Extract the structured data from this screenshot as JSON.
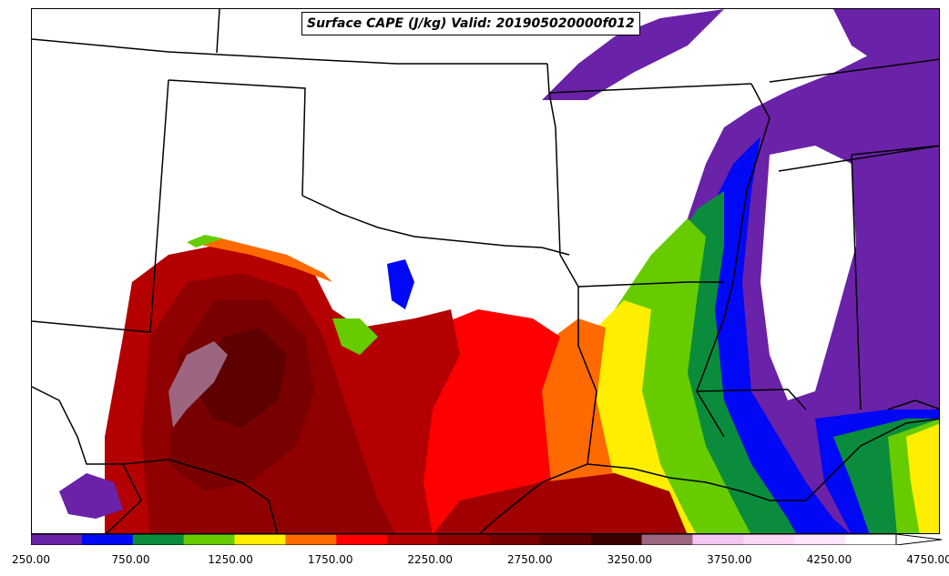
{
  "title": "Surface CAPE (J/kg) Valid: 201905020000f012",
  "colorbar": {
    "levels": [
      250,
      500,
      750,
      1000,
      1250,
      1500,
      1750,
      2000,
      2250,
      2500,
      2750,
      3000,
      3250,
      3500,
      3750,
      4000,
      4250,
      4500,
      4750
    ],
    "colors": [
      "#6a22a8",
      "#0008f5",
      "#0a8c3c",
      "#66cc00",
      "#ffee00",
      "#ff6a00",
      "#ff0000",
      "#b40000",
      "#900000",
      "#780000",
      "#5e0000",
      "#3a0000",
      "#9c6680",
      "#f6c6f2",
      "#fbd8f6",
      "#ffe6fb",
      "#ffffff",
      "#ffffff"
    ],
    "tick_labels": [
      "250.00",
      "750.00",
      "1250.00",
      "1750.00",
      "2250.00",
      "2750.00",
      "3250.00",
      "3750.00",
      "4250.00",
      "4750.00"
    ],
    "extend": "max"
  },
  "colors": {
    "land_low": "#ffffff",
    "border": "#000000"
  }
}
